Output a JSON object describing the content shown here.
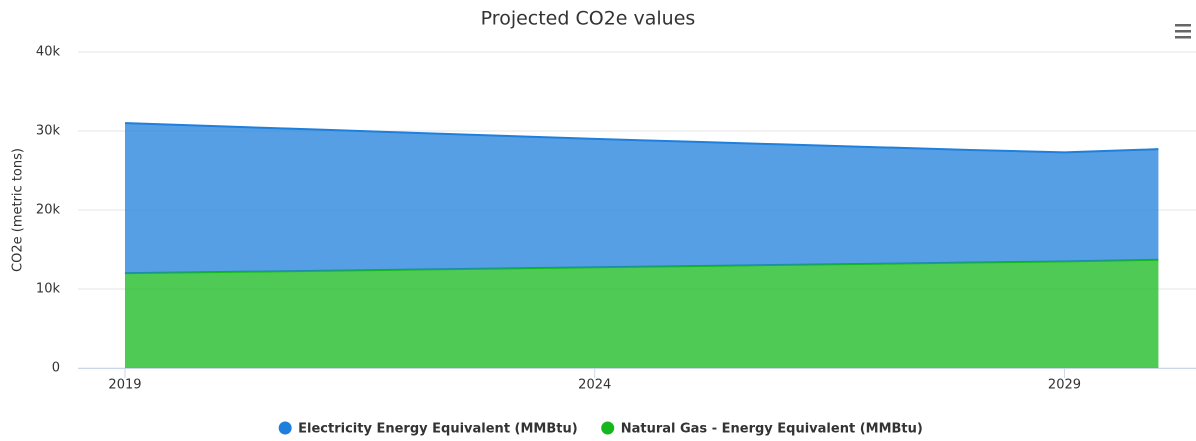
{
  "chart_data": {
    "type": "area",
    "stacked": true,
    "title": "Projected CO2e values",
    "y_label": "CO2e (metric tons)",
    "x": [
      2019,
      2020,
      2021,
      2022,
      2023,
      2024,
      2025,
      2026,
      2027,
      2028,
      2029,
      2030
    ],
    "xlim": [
      2018.5,
      2030.4
    ],
    "xticks": [
      2019,
      2024,
      2029
    ],
    "ylim": [
      0,
      40000
    ],
    "yticks": [
      0,
      {
        "value": 10000,
        "label": "10k"
      },
      {
        "value": 20000,
        "label": "20k"
      },
      {
        "value": 30000,
        "label": "30k"
      },
      {
        "value": 40000,
        "label": "40k"
      }
    ],
    "grid": true,
    "legend": "bottom",
    "series": [
      {
        "name": "Electricity Energy Equivalent (MMBtu)",
        "color": "#1f7fdc",
        "values": [
          19000,
          18450,
          17900,
          17350,
          16800,
          16250,
          15750,
          15250,
          14750,
          14250,
          13800,
          14000
        ]
      },
      {
        "name": "Natural Gas - Energy Equivalent (MMBtu)",
        "color": "#14b81c",
        "values": [
          12000,
          12150,
          12300,
          12450,
          12600,
          12750,
          12900,
          13050,
          13200,
          13350,
          13500,
          13700
        ]
      }
    ]
  }
}
